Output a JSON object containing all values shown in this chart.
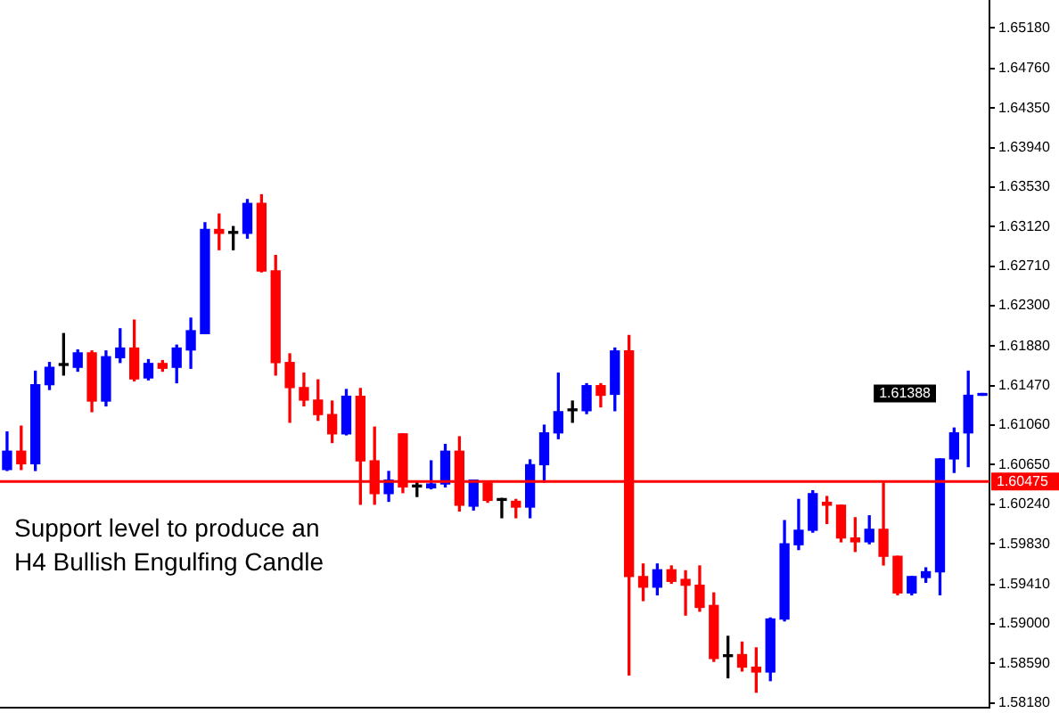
{
  "chart_data": {
    "type": "candlestick",
    "categories": [
      null,
      null,
      null,
      null,
      null,
      null,
      null,
      null,
      null,
      null,
      null,
      null,
      null,
      null,
      null,
      null,
      null,
      null,
      null,
      null,
      null,
      null,
      null,
      null,
      null,
      null,
      null,
      null,
      null,
      null,
      null,
      null,
      null,
      null,
      null,
      null,
      null,
      null,
      null,
      null,
      null,
      null,
      null,
      null,
      null,
      null,
      null,
      null,
      null,
      null,
      null,
      null,
      null,
      null,
      null,
      null,
      null,
      null,
      null,
      null,
      null,
      null,
      null,
      null,
      null,
      null,
      null,
      null,
      null,
      null
    ],
    "ohlc": [
      [
        1.606,
        1.6099,
        1.6059,
        1.6079
      ],
      [
        1.6079,
        1.6105,
        1.606,
        1.6066
      ],
      [
        1.6066,
        1.6162,
        1.6059,
        1.6148
      ],
      [
        1.6148,
        1.6171,
        1.6143,
        1.6166
      ],
      [
        1.6168,
        1.6201,
        1.6158,
        1.6168
      ],
      [
        1.6166,
        1.6184,
        1.6162,
        1.6181
      ],
      [
        1.6181,
        1.6183,
        1.612,
        1.6131
      ],
      [
        1.6131,
        1.6183,
        1.6126,
        1.6177
      ],
      [
        1.6176,
        1.6206,
        1.6171,
        1.6186
      ],
      [
        1.6186,
        1.6215,
        1.6152,
        1.6154
      ],
      [
        1.6155,
        1.6174,
        1.6153,
        1.617
      ],
      [
        1.617,
        1.6173,
        1.6162,
        1.6165
      ],
      [
        1.6166,
        1.6189,
        1.615,
        1.6186
      ],
      [
        1.6184,
        1.6217,
        1.6165,
        1.6204
      ],
      [
        1.6201,
        1.6316,
        1.6201,
        1.6309
      ],
      [
        1.6309,
        1.6325,
        1.6288,
        1.6305
      ],
      [
        1.6305,
        1.6312,
        1.6288,
        1.6305
      ],
      [
        1.6305,
        1.634,
        1.63,
        1.6336
      ],
      [
        1.6336,
        1.6345,
        1.6265,
        1.6266
      ],
      [
        1.6266,
        1.6282,
        1.6158,
        1.6171
      ],
      [
        1.6171,
        1.618,
        1.6109,
        1.6145
      ],
      [
        1.6145,
        1.616,
        1.6126,
        1.6132
      ],
      [
        1.6132,
        1.6153,
        1.6111,
        1.6117
      ],
      [
        1.6117,
        1.6131,
        1.6088,
        1.6097
      ],
      [
        1.6097,
        1.6143,
        1.6096,
        1.6136
      ],
      [
        1.6136,
        1.6144,
        1.6024,
        1.6069
      ],
      [
        1.6069,
        1.6104,
        1.6024,
        1.6035
      ],
      [
        1.6035,
        1.6058,
        1.6027,
        1.6049
      ],
      [
        1.6097,
        1.6097,
        1.6036,
        1.6042
      ],
      [
        1.6042,
        1.6047,
        1.6032,
        1.6042
      ],
      [
        1.6041,
        1.6069,
        1.604,
        1.6045
      ],
      [
        1.6045,
        1.6086,
        1.6042,
        1.6079
      ],
      [
        1.6079,
        1.6094,
        1.6017,
        1.6023
      ],
      [
        1.6022,
        1.6049,
        1.6018,
        1.6049
      ],
      [
        1.6046,
        1.6047,
        1.6026,
        1.6028
      ],
      [
        1.6028,
        1.603,
        1.601,
        1.6028
      ],
      [
        1.6027,
        1.6029,
        1.601,
        1.6021
      ],
      [
        1.6021,
        1.607,
        1.601,
        1.6065
      ],
      [
        1.6065,
        1.6106,
        1.6047,
        1.6098
      ],
      [
        1.6098,
        1.616,
        1.6092,
        1.612
      ],
      [
        1.6121,
        1.6131,
        1.6109,
        1.6121
      ],
      [
        1.6121,
        1.6149,
        1.6118,
        1.6147
      ],
      [
        1.6147,
        1.6149,
        1.6125,
        1.6137
      ],
      [
        1.6138,
        1.6186,
        1.6121,
        1.6183
      ],
      [
        1.6183,
        1.6199,
        1.5847,
        1.5949
      ],
      [
        1.5949,
        1.5962,
        1.5924,
        1.5938
      ],
      [
        1.5938,
        1.5962,
        1.593,
        1.5956
      ],
      [
        1.5956,
        1.596,
        1.5942,
        1.5944
      ],
      [
        1.5946,
        1.5955,
        1.5909,
        1.594
      ],
      [
        1.594,
        1.596,
        1.5913,
        1.5917
      ],
      [
        1.5919,
        1.5932,
        1.5861,
        1.5864
      ],
      [
        1.5866,
        1.5887,
        1.5844,
        1.5866
      ],
      [
        1.5868,
        1.5881,
        1.5851,
        1.5855
      ],
      [
        1.5855,
        1.5875,
        1.5829,
        1.585
      ],
      [
        1.585,
        1.5906,
        1.5841,
        1.5905
      ],
      [
        1.5905,
        1.6007,
        1.5903,
        1.5983
      ],
      [
        1.5982,
        1.6029,
        1.5977,
        1.5997
      ],
      [
        1.5997,
        1.6038,
        1.5995,
        1.6035
      ],
      [
        1.6026,
        1.6032,
        1.6004,
        1.6023
      ],
      [
        1.6023,
        1.6023,
        1.5985,
        1.5989
      ],
      [
        1.5989,
        1.601,
        1.5975,
        1.5985
      ],
      [
        1.5985,
        1.6012,
        1.5983,
        1.5998
      ],
      [
        1.5998,
        1.6046,
        1.5961,
        1.597
      ],
      [
        1.597,
        1.597,
        1.593,
        1.5932
      ],
      [
        1.5932,
        1.5949,
        1.593,
        1.5949
      ],
      [
        1.5948,
        1.5958,
        1.5943,
        1.5954
      ],
      [
        1.5954,
        1.6071,
        1.593,
        1.6071
      ],
      [
        1.6071,
        1.6103,
        1.6057,
        1.6098
      ],
      [
        1.6098,
        1.6162,
        1.6063,
        1.6137
      ],
      [
        1.6137,
        1.61388,
        1.6137,
        1.61388
      ]
    ],
    "colors": [
      "#0000ff",
      "#ff0000",
      "#0000ff",
      "#0000ff",
      "#000000",
      "#0000ff",
      "#ff0000",
      "#0000ff",
      "#0000ff",
      "#ff0000",
      "#0000ff",
      "#ff0000",
      "#0000ff",
      "#0000ff",
      "#0000ff",
      "#ff0000",
      "#000000",
      "#0000ff",
      "#ff0000",
      "#ff0000",
      "#ff0000",
      "#ff0000",
      "#ff0000",
      "#ff0000",
      "#0000ff",
      "#ff0000",
      "#ff0000",
      "#0000ff",
      "#ff0000",
      "#000000",
      "#0000ff",
      "#0000ff",
      "#ff0000",
      "#0000ff",
      "#ff0000",
      "#000000",
      "#ff0000",
      "#0000ff",
      "#0000ff",
      "#0000ff",
      "#000000",
      "#0000ff",
      "#ff0000",
      "#0000ff",
      "#ff0000",
      "#ff0000",
      "#0000ff",
      "#ff0000",
      "#ff0000",
      "#ff0000",
      "#ff0000",
      "#000000",
      "#ff0000",
      "#ff0000",
      "#0000ff",
      "#0000ff",
      "#0000ff",
      "#0000ff",
      "#ff0000",
      "#ff0000",
      "#ff0000",
      "#0000ff",
      "#ff0000",
      "#ff0000",
      "#0000ff",
      "#0000ff",
      "#0000ff",
      "#0000ff",
      "#0000ff",
      "#0000ff"
    ],
    "ylim": [
      1.5813,
      1.6547
    ],
    "yticks": [
      {
        "value": 1.6518,
        "label": "1.65180"
      },
      {
        "value": 1.6476,
        "label": "1.64760"
      },
      {
        "value": 1.6435,
        "label": "1.64350"
      },
      {
        "value": 1.6394,
        "label": "1.63940"
      },
      {
        "value": 1.6353,
        "label": "1.63530"
      },
      {
        "value": 1.6312,
        "label": "1.63120"
      },
      {
        "value": 1.6271,
        "label": "1.62710"
      },
      {
        "value": 1.623,
        "label": "1.62300"
      },
      {
        "value": 1.6188,
        "label": "1.61880"
      },
      {
        "value": 1.6147,
        "label": "1.61470"
      },
      {
        "value": 1.6106,
        "label": "1.61060"
      },
      {
        "value": 1.6065,
        "label": "1.60650"
      },
      {
        "value": 1.6024,
        "label": "1.60240"
      },
      {
        "value": 1.5983,
        "label": "1.59830"
      },
      {
        "value": 1.5941,
        "label": "1.59410"
      },
      {
        "value": 1.59,
        "label": "1.59000"
      },
      {
        "value": 1.5859,
        "label": "1.58590"
      },
      {
        "value": 1.5818,
        "label": "1.58180"
      }
    ],
    "tick_labels": "y",
    "ref_lines": [
      {
        "axis": "y",
        "value": 1.60475,
        "label": "1.60475",
        "color": "#ff0000"
      }
    ],
    "annotations": [
      "Support level to produce an H4 Bullish Engulfing Candle",
      "1.61388"
    ]
  }
}
